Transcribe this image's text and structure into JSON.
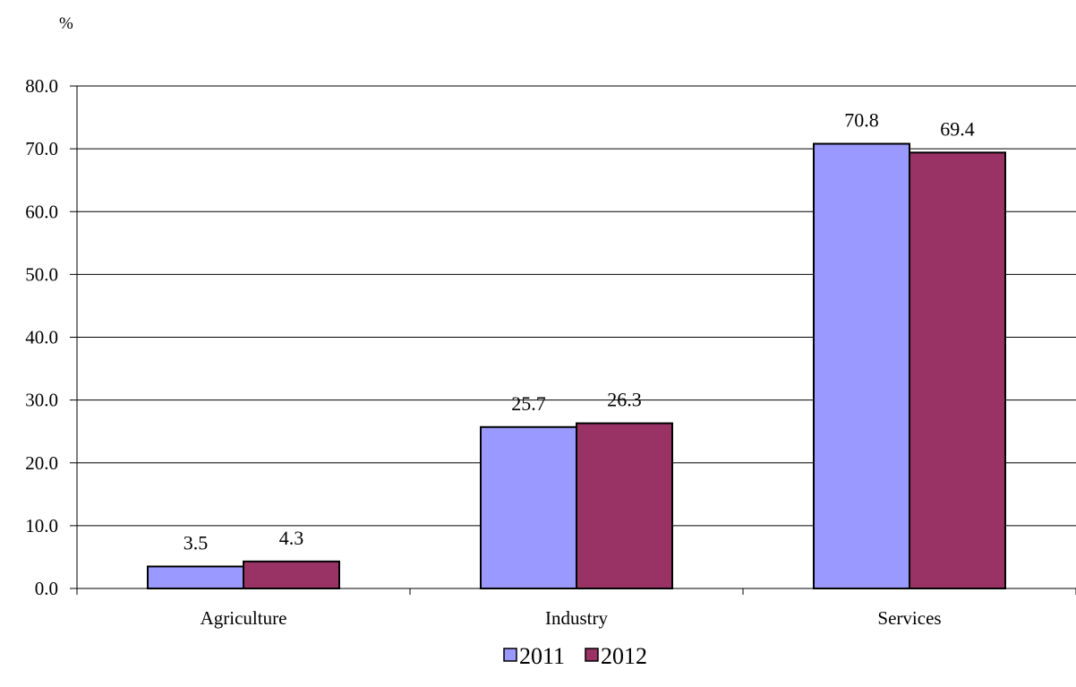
{
  "chart_data": {
    "type": "bar",
    "unit_label": "%",
    "categories": [
      "Agriculture",
      "Industry",
      "Services"
    ],
    "series": [
      {
        "name": "2011",
        "color": "#9999ff",
        "values": [
          3.5,
          25.7,
          70.8
        ]
      },
      {
        "name": "2012",
        "color": "#993366",
        "values": [
          4.3,
          26.3,
          69.4
        ]
      }
    ],
    "ylim": [
      0,
      80
    ],
    "yticks": [
      "0.0",
      "10.0",
      "20.0",
      "30.0",
      "40.0",
      "50.0",
      "60.0",
      "70.0",
      "80.0"
    ],
    "grid": true,
    "legend_position": "bottom",
    "data_labels": true
  }
}
